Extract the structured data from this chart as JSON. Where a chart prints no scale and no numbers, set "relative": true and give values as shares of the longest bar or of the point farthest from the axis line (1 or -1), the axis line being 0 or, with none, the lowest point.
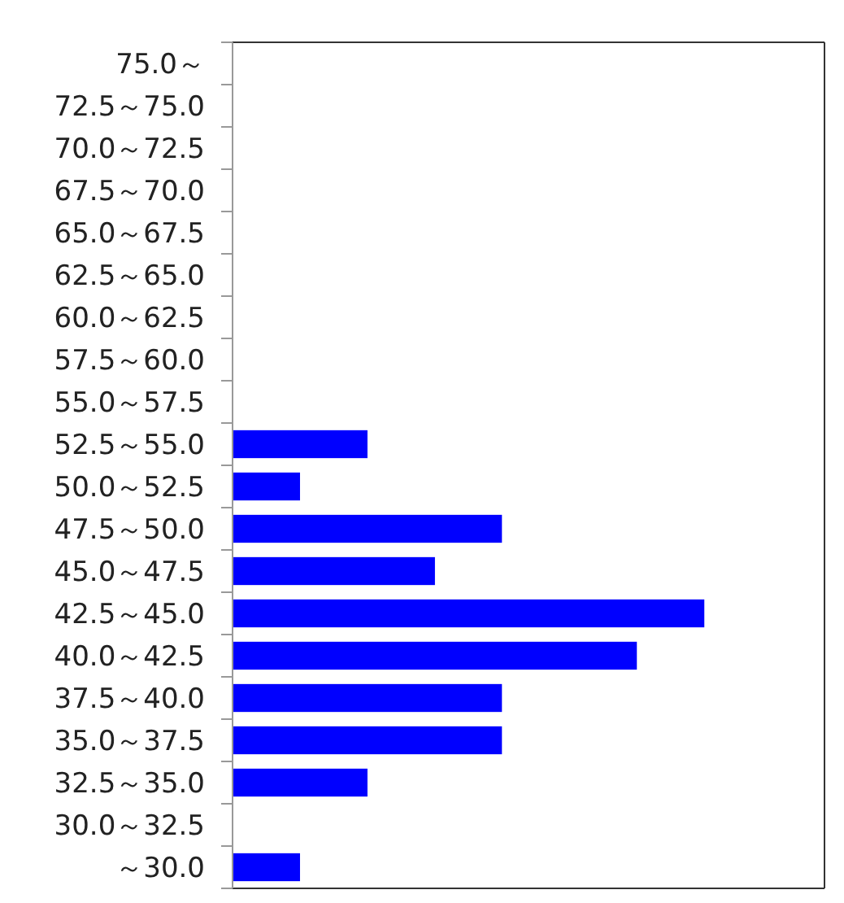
{
  "chart_data": {
    "type": "bar",
    "orientation": "horizontal",
    "relative": true,
    "color": "#0000ff",
    "categories": [
      "75.0～",
      "72.5～75.0",
      "70.0～72.5",
      "67.5～70.0",
      "65.0～67.5",
      "62.5～65.0",
      "60.0～62.5",
      "57.5～60.0",
      "55.0～57.5",
      "52.5～55.0",
      "50.0～52.5",
      "47.5～50.0",
      "45.0～47.5",
      "42.5～45.0",
      "40.0～42.5",
      "37.5～40.0",
      "35.0～37.5",
      "32.5～35.0",
      "30.0～32.5",
      "～30.0"
    ],
    "values": [
      0,
      0,
      0,
      0,
      0,
      0,
      0,
      0,
      0,
      0.286,
      0.143,
      0.571,
      0.429,
      1,
      0.857,
      0.571,
      0.571,
      0.286,
      0,
      0.143
    ]
  }
}
